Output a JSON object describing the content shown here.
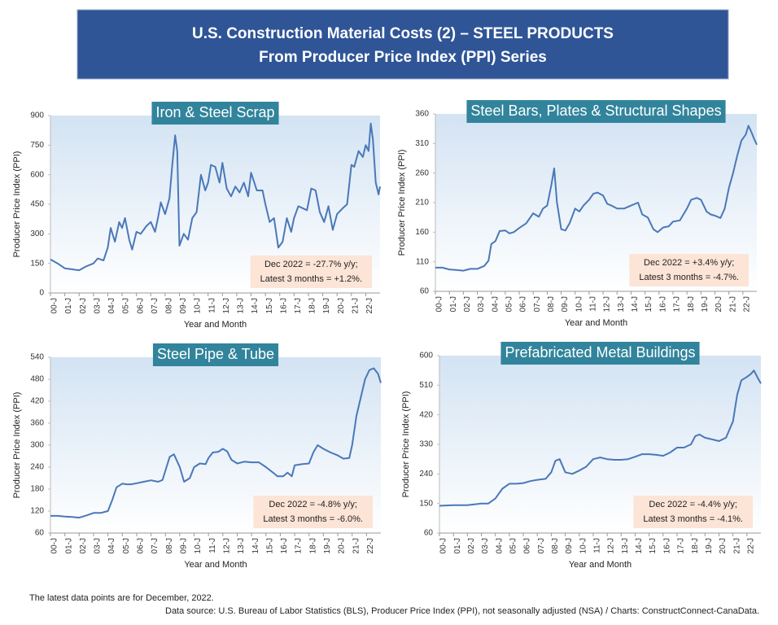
{
  "title": [
    "U.S. Construction Material Costs (2) – STEEL PRODUCTS",
    "From Producer Price Index (PPI) Series"
  ],
  "notes": [
    "The latest data points are for December, 2022.",
    "Data source: U.S. Bureau of Labor Statistics (BLS), Producer Price Index (PPI), not seasonally adjusted (NSA) / Charts: ConstructConnect-CanaData."
  ],
  "chart_data": [
    {
      "type": "line",
      "title": "Iron & Steel Scrap",
      "xlabel": "Year and Month",
      "ylabel": "Producer Price Index (PPI)",
      "color": "#4a78b8",
      "annotation": [
        "Dec 2022 = -27.7% y/y;",
        "Latest 3 months = +1.2%."
      ],
      "x": [
        0,
        0.5,
        1,
        1.5,
        2,
        2.5,
        3,
        3.3,
        3.7,
        4,
        4.2,
        4.5,
        4.8,
        5,
        5.2,
        5.5,
        5.7,
        6,
        6.3,
        6.7,
        7,
        7.3,
        7.5,
        7.7,
        8,
        8.3,
        8.5,
        8.7,
        8.85,
        9,
        9.3,
        9.6,
        9.9,
        10.2,
        10.5,
        10.8,
        11,
        11.2,
        11.5,
        11.8,
        12,
        12.3,
        12.6,
        12.9,
        13.2,
        13.5,
        13.8,
        14,
        14.4,
        14.8,
        15,
        15.3,
        15.6,
        15.9,
        16.2,
        16.5,
        16.8,
        17,
        17.3,
        17.6,
        17.9,
        18.2,
        18.5,
        18.8,
        19.1,
        19.4,
        19.7,
        20,
        20.4,
        20.7,
        21,
        21.2,
        21.5,
        21.8,
        22,
        22.2,
        22.35,
        22.5,
        22.7,
        22.9,
        23
      ],
      "values": [
        170,
        150,
        125,
        120,
        115,
        135,
        150,
        175,
        165,
        230,
        330,
        260,
        360,
        330,
        380,
        270,
        220,
        310,
        300,
        340,
        360,
        310,
        380,
        460,
        400,
        480,
        650,
        800,
        720,
        240,
        300,
        270,
        380,
        410,
        600,
        520,
        560,
        650,
        640,
        560,
        660,
        530,
        490,
        540,
        510,
        560,
        490,
        610,
        520,
        520,
        450,
        360,
        380,
        230,
        260,
        380,
        310,
        380,
        440,
        430,
        420,
        530,
        520,
        410,
        360,
        440,
        320,
        400,
        430,
        450,
        650,
        640,
        720,
        690,
        750,
        720,
        860,
        780,
        560,
        500,
        540
      ],
      "xlim": [
        0,
        23
      ],
      "ylim": [
        0,
        900
      ],
      "yticks": [
        0,
        150,
        300,
        450,
        600,
        750,
        900
      ],
      "xticks": [
        {
          "value": 0,
          "label": "00-J"
        },
        {
          "value": 1,
          "label": "01-J"
        },
        {
          "value": 2,
          "label": "02-J"
        },
        {
          "value": 3,
          "label": "03-J"
        },
        {
          "value": 4,
          "label": "04-J"
        },
        {
          "value": 5,
          "label": "05-J"
        },
        {
          "value": 6,
          "label": "06-J"
        },
        {
          "value": 7,
          "label": "07-J"
        },
        {
          "value": 8,
          "label": "08-J"
        },
        {
          "value": 9,
          "label": "09-J"
        },
        {
          "value": 10,
          "label": "10-J"
        },
        {
          "value": 11,
          "label": "11-J"
        },
        {
          "value": 12,
          "label": "12-J"
        },
        {
          "value": 13,
          "label": "13-J"
        },
        {
          "value": 14,
          "label": "14-J"
        },
        {
          "value": 15,
          "label": "15-J"
        },
        {
          "value": 16,
          "label": "16-J"
        },
        {
          "value": 17,
          "label": "17-J"
        },
        {
          "value": 18,
          "label": "18-J"
        },
        {
          "value": 19,
          "label": "19-J"
        },
        {
          "value": 20,
          "label": "20-J"
        },
        {
          "value": 21,
          "label": "21-J"
        },
        {
          "value": 22,
          "label": "22-J"
        }
      ]
    },
    {
      "type": "line",
      "title": "Steel Bars, Plates & Structural Shapes",
      "xlabel": "Year and Month",
      "ylabel": "Producer Price Index (PPI)",
      "color": "#4a78b8",
      "annotation": [
        "Dec 2022 = +3.4% y/y;",
        "Latest 3 months = -4.7%."
      ],
      "x": [
        0,
        0.5,
        1,
        1.5,
        2,
        2.5,
        3,
        3.5,
        3.8,
        4,
        4.3,
        4.6,
        5,
        5.3,
        5.6,
        6,
        6.5,
        7,
        7.4,
        7.7,
        8,
        8.3,
        8.5,
        8.7,
        9,
        9.3,
        9.6,
        10,
        10.3,
        10.6,
        11,
        11.3,
        11.6,
        12,
        12.3,
        12.6,
        13,
        13.5,
        14,
        14.5,
        14.8,
        15.2,
        15.6,
        15.9,
        16.3,
        16.7,
        17,
        17.5,
        18,
        18.3,
        18.7,
        19,
        19.4,
        19.7,
        20,
        20.4,
        20.7,
        21,
        21.3,
        21.6,
        21.9,
        22.2,
        22.4,
        22.6,
        22.8,
        23
      ],
      "values": [
        100,
        100,
        97,
        96,
        95,
        98,
        98,
        103,
        112,
        140,
        145,
        162,
        163,
        158,
        160,
        167,
        175,
        192,
        186,
        200,
        205,
        240,
        268,
        210,
        165,
        163,
        175,
        200,
        195,
        205,
        215,
        225,
        227,
        222,
        208,
        205,
        200,
        200,
        205,
        210,
        190,
        185,
        165,
        160,
        168,
        170,
        178,
        180,
        200,
        215,
        218,
        215,
        195,
        190,
        188,
        184,
        200,
        235,
        260,
        290,
        315,
        325,
        340,
        330,
        318,
        308
      ],
      "xlim": [
        0,
        23
      ],
      "ylim": [
        60,
        360
      ],
      "yticks": [
        60,
        110,
        160,
        210,
        260,
        310,
        360
      ],
      "xticks": [
        {
          "value": 0,
          "label": "00-J"
        },
        {
          "value": 1,
          "label": "01-J"
        },
        {
          "value": 2,
          "label": "02-J"
        },
        {
          "value": 3,
          "label": "03-J"
        },
        {
          "value": 4,
          "label": "04-J"
        },
        {
          "value": 5,
          "label": "05-J"
        },
        {
          "value": 6,
          "label": "06-J"
        },
        {
          "value": 7,
          "label": "07-J"
        },
        {
          "value": 8,
          "label": "08-J"
        },
        {
          "value": 9,
          "label": "09-J"
        },
        {
          "value": 10,
          "label": "10-J"
        },
        {
          "value": 11,
          "label": "11-J"
        },
        {
          "value": 12,
          "label": "12-J"
        },
        {
          "value": 13,
          "label": "13-J"
        },
        {
          "value": 14,
          "label": "14-J"
        },
        {
          "value": 15,
          "label": "15-J"
        },
        {
          "value": 16,
          "label": "16-J"
        },
        {
          "value": 17,
          "label": "17-J"
        },
        {
          "value": 18,
          "label": "18-J"
        },
        {
          "value": 19,
          "label": "19-J"
        },
        {
          "value": 20,
          "label": "20-J"
        },
        {
          "value": 21,
          "label": "21-J"
        },
        {
          "value": 22,
          "label": "22-J"
        }
      ]
    },
    {
      "type": "line",
      "title": "Steel Pipe & Tube",
      "xlabel": "Year and Month",
      "ylabel": "Producer Price Index (PPI)",
      "color": "#4a78b8",
      "annotation": [
        "Dec 2022 = -4.8% y/y;",
        "Latest 3 months = -6.0%."
      ],
      "x": [
        0,
        0.5,
        1,
        1.5,
        2,
        2.5,
        3,
        3.5,
        4,
        4.3,
        4.6,
        5,
        5.3,
        5.6,
        6,
        6.5,
        7,
        7.5,
        7.8,
        8,
        8.3,
        8.6,
        9,
        9.3,
        9.7,
        10,
        10.4,
        10.8,
        11,
        11.3,
        11.7,
        12,
        12.3,
        12.6,
        13,
        13.5,
        14,
        14.5,
        15,
        15.5,
        15.8,
        16.2,
        16.5,
        16.8,
        17,
        17.5,
        18,
        18.3,
        18.6,
        19,
        19.5,
        20,
        20.4,
        20.8,
        21,
        21.3,
        21.6,
        21.9,
        22.2,
        22.5,
        22.8,
        23
      ],
      "values": [
        107,
        107,
        105,
        104,
        102,
        108,
        115,
        115,
        120,
        150,
        185,
        195,
        193,
        193,
        196,
        200,
        204,
        200,
        205,
        230,
        268,
        275,
        240,
        200,
        210,
        240,
        250,
        248,
        265,
        280,
        282,
        290,
        283,
        260,
        250,
        255,
        253,
        253,
        240,
        225,
        215,
        215,
        225,
        215,
        245,
        248,
        250,
        280,
        300,
        290,
        280,
        272,
        263,
        265,
        300,
        380,
        430,
        480,
        505,
        510,
        495,
        470
      ],
      "xlim": [
        0,
        23
      ],
      "ylim": [
        60,
        540
      ],
      "yticks": [
        60,
        120,
        180,
        240,
        300,
        360,
        420,
        480,
        540
      ],
      "xticks": [
        {
          "value": 0,
          "label": "00-J"
        },
        {
          "value": 1,
          "label": "01-J"
        },
        {
          "value": 2,
          "label": "02-J"
        },
        {
          "value": 3,
          "label": "03-J"
        },
        {
          "value": 4,
          "label": "04-J"
        },
        {
          "value": 5,
          "label": "05-J"
        },
        {
          "value": 6,
          "label": "06-J"
        },
        {
          "value": 7,
          "label": "07-J"
        },
        {
          "value": 8,
          "label": "08-J"
        },
        {
          "value": 9,
          "label": "09-J"
        },
        {
          "value": 10,
          "label": "10-J"
        },
        {
          "value": 11,
          "label": "11-J"
        },
        {
          "value": 12,
          "label": "12-J"
        },
        {
          "value": 13,
          "label": "13-J"
        },
        {
          "value": 14,
          "label": "14-J"
        },
        {
          "value": 15,
          "label": "15-J"
        },
        {
          "value": 16,
          "label": "16-J"
        },
        {
          "value": 17,
          "label": "17-J"
        },
        {
          "value": 18,
          "label": "18-J"
        },
        {
          "value": 19,
          "label": "19-J"
        },
        {
          "value": 20,
          "label": "20-J"
        },
        {
          "value": 21,
          "label": "21-J"
        },
        {
          "value": 22,
          "label": "22-J"
        }
      ]
    },
    {
      "type": "line",
      "title": "Prefabricated Metal Buildings",
      "xlabel": "Year and Month",
      "ylabel": "Producer Price Index (PPI)",
      "color": "#4a78b8",
      "annotation": [
        "Dec 2022 = -4.4% y/y;",
        "Latest 3 months = -4.1%."
      ],
      "x": [
        0,
        1,
        2,
        3,
        3.5,
        4,
        4.5,
        5,
        5.5,
        6,
        6.5,
        7,
        7.6,
        8,
        8.3,
        8.6,
        9,
        9.5,
        10,
        10.5,
        11,
        11.5,
        12,
        12.5,
        13,
        13.5,
        14,
        14.5,
        15,
        15.5,
        16,
        16.5,
        17,
        17.5,
        18,
        18.3,
        18.6,
        19,
        19.5,
        20,
        20.5,
        21,
        21.3,
        21.6,
        22,
        22.3,
        22.5,
        22.8,
        23
      ],
      "values": [
        143,
        145,
        145,
        150,
        150,
        165,
        195,
        210,
        210,
        212,
        218,
        222,
        225,
        245,
        280,
        285,
        245,
        240,
        250,
        262,
        285,
        290,
        285,
        283,
        283,
        285,
        292,
        300,
        300,
        298,
        295,
        305,
        320,
        320,
        330,
        355,
        360,
        350,
        345,
        340,
        350,
        400,
        480,
        525,
        535,
        545,
        555,
        530,
        515
      ],
      "xlim": [
        0,
        23
      ],
      "ylim": [
        60,
        600
      ],
      "yticks": [
        60,
        150,
        240,
        330,
        420,
        510,
        600
      ],
      "xticks": [
        {
          "value": 0,
          "label": "00-J"
        },
        {
          "value": 1,
          "label": "01-J"
        },
        {
          "value": 2,
          "label": "02-J"
        },
        {
          "value": 3,
          "label": "03-J"
        },
        {
          "value": 4,
          "label": "04-J"
        },
        {
          "value": 5,
          "label": "05-J"
        },
        {
          "value": 6,
          "label": "06-J"
        },
        {
          "value": 7,
          "label": "07-J"
        },
        {
          "value": 8,
          "label": "08-J"
        },
        {
          "value": 9,
          "label": "09-J"
        },
        {
          "value": 10,
          "label": "10-J"
        },
        {
          "value": 11,
          "label": "11-J"
        },
        {
          "value": 12,
          "label": "12-J"
        },
        {
          "value": 13,
          "label": "13-J"
        },
        {
          "value": 14,
          "label": "14-J"
        },
        {
          "value": 15,
          "label": "15-J"
        },
        {
          "value": 16,
          "label": "16-J"
        },
        {
          "value": 17,
          "label": "17-J"
        },
        {
          "value": 18,
          "label": "18-J"
        },
        {
          "value": 19,
          "label": "19-J"
        },
        {
          "value": 20,
          "label": "20-J"
        },
        {
          "value": 21,
          "label": "21-J"
        },
        {
          "value": 22,
          "label": "22-J"
        }
      ]
    }
  ]
}
